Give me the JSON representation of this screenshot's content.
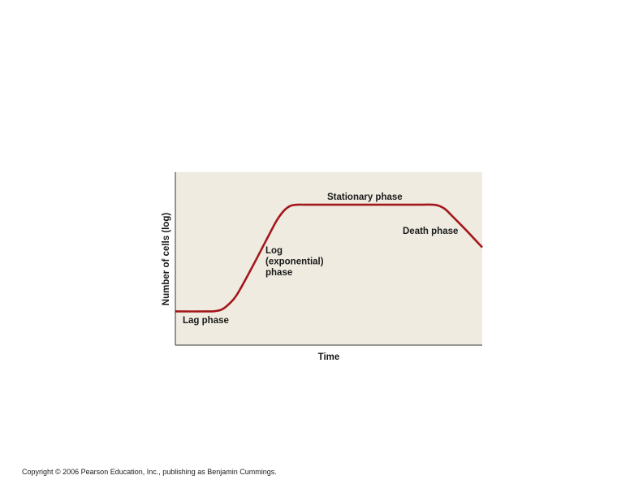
{
  "chart_data": {
    "type": "line",
    "title": "",
    "xlabel": "Time",
    "ylabel": "Number of cells (log)",
    "xlim": [
      0,
      100
    ],
    "ylim": [
      0,
      100
    ],
    "grid": false,
    "x_ticks_shown": false,
    "y_ticks_shown": false,
    "colors": {
      "plot_background": "#efebe1",
      "axis": "#333333",
      "curve": "#a3171b"
    },
    "series": [
      {
        "x": [
          0,
          11,
          13,
          15,
          17,
          20,
          25,
          30,
          33,
          35,
          36.5,
          38,
          40,
          42,
          50,
          60,
          70,
          80,
          84,
          86,
          88,
          90,
          95,
          100
        ],
        "y": [
          19.5,
          19.5,
          19.7,
          20.5,
          23,
          29,
          45,
          62,
          72,
          77,
          79.5,
          80.8,
          81.2,
          81.2,
          81.2,
          81.2,
          81.2,
          81.2,
          81.2,
          80.5,
          78.5,
          75,
          66,
          56.5
        ]
      }
    ],
    "annotations": [
      {
        "lines": [
          "Stationary phase"
        ]
      },
      {
        "lines": [
          "Death phase"
        ]
      },
      {
        "lines": [
          "Log",
          "(exponential)",
          "phase"
        ]
      },
      {
        "lines": [
          "Lag phase"
        ]
      }
    ]
  },
  "footer": {
    "copyright": "Copyright © 2006 Pearson Education, Inc., publishing as Benjamin Cummings."
  }
}
